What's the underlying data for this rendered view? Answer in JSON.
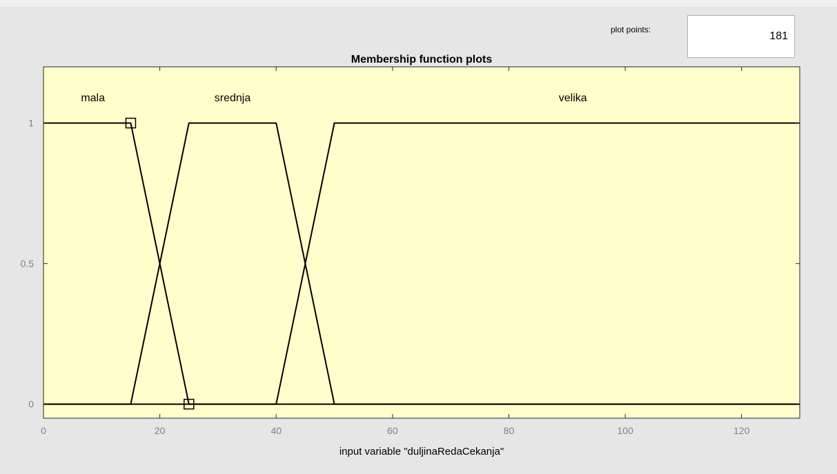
{
  "plot_points": {
    "label": "plot points:",
    "value": "181"
  },
  "colors": {
    "plot_bg": "#ffffcc",
    "window_bg": "#e6e6e6",
    "line": "#000000",
    "tick_label": "#808080"
  },
  "chart_data": {
    "type": "line",
    "title": "Membership function plots",
    "xlabel": "input variable \"duljinaRedaCekanja\"",
    "ylabel": "",
    "xlim": [
      0,
      130
    ],
    "ylim": [
      -0.05,
      1.2
    ],
    "xticks": [
      0,
      20,
      40,
      60,
      80,
      100,
      120
    ],
    "xtick_labels": [
      "0",
      "20",
      "40",
      "60",
      "80",
      "100",
      "120"
    ],
    "yticks": [
      0,
      0.5,
      1
    ],
    "ytick_labels": [
      "0",
      "0.5",
      "1"
    ],
    "grid": false,
    "series": [
      {
        "name": "mala",
        "x": [
          0,
          15,
          25,
          130
        ],
        "y": [
          1,
          1,
          0,
          0
        ],
        "label_pos": [
          8.5,
          1.09
        ]
      },
      {
        "name": "srednja",
        "x": [
          0,
          15,
          25,
          40,
          50,
          130
        ],
        "y": [
          0,
          0,
          1,
          1,
          0,
          0
        ],
        "label_pos": [
          32.5,
          1.09
        ]
      },
      {
        "name": "velika",
        "x": [
          0,
          40,
          50,
          130
        ],
        "y": [
          0,
          0,
          1,
          1
        ],
        "label_pos": [
          91,
          1.09
        ]
      }
    ],
    "selected_series": "mala",
    "markers": [
      {
        "x": 15,
        "y": 1
      },
      {
        "x": 25,
        "y": 0
      }
    ]
  }
}
